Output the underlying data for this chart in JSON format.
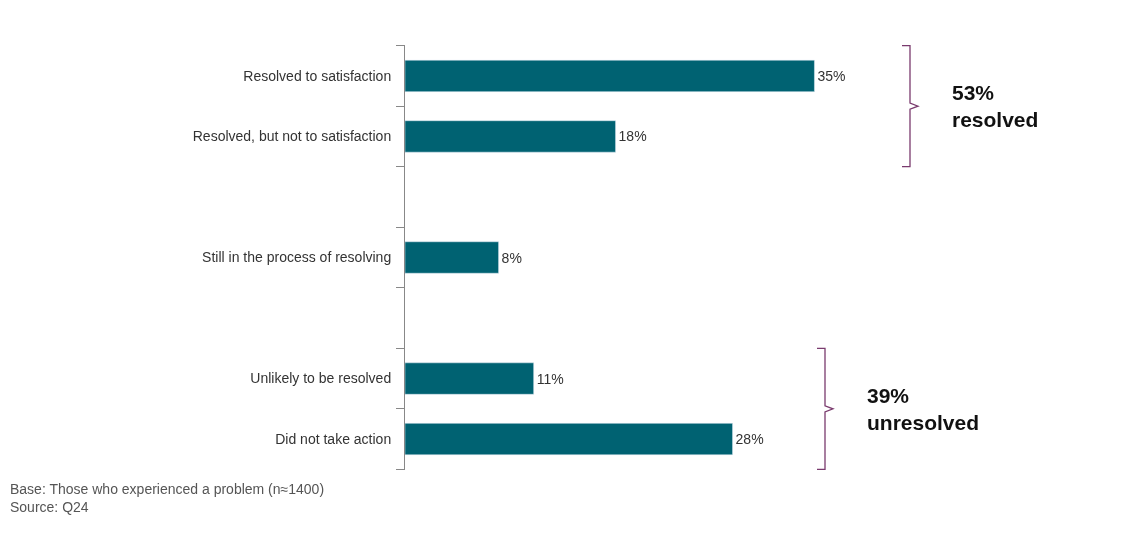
{
  "chart_data": {
    "type": "bar",
    "orientation": "horizontal",
    "categories": [
      "Resolved to satisfaction",
      "Resolved, but not to satisfaction",
      null,
      "Still in the process of resolving",
      null,
      "Unlikely to be resolved",
      "Did not take action"
    ],
    "values": [
      35,
      18,
      null,
      8,
      null,
      11,
      28
    ],
    "value_labels": [
      "35%",
      "18%",
      null,
      "8%",
      null,
      "11%",
      "28%"
    ],
    "color": "#006272",
    "legend": false,
    "tick_labels": "y",
    "annotations": [
      "53%\nresolved",
      "39%\nunresolved",
      "Base: Those who experienced a problem (n≈1400)\nSource: Q24"
    ]
  }
}
